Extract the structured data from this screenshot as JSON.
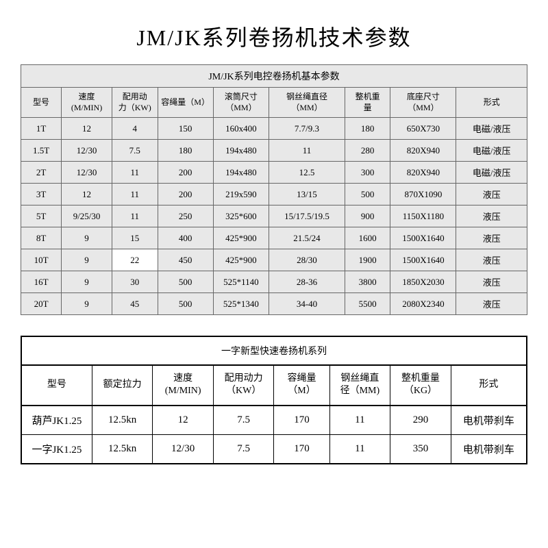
{
  "page_title": "JM/JK系列卷扬机技术参数",
  "table1": {
    "caption": "JM/JK系列电控卷扬机基本参数",
    "columns": [
      "型号",
      "速度\n(M/MIN)",
      "配用动\n力（KW)",
      "容绳量（M）",
      "滚筒尺寸\n（MM）",
      "钢丝绳直径\n（MM）",
      "整机重\n量",
      "底座尺寸\n（MM）",
      "形式"
    ],
    "col_widths": [
      "8%",
      "10%",
      "9%",
      "11%",
      "11%",
      "15%",
      "9%",
      "13%",
      "14%"
    ],
    "highlight_cell": {
      "row": 6,
      "col": 2
    },
    "rows": [
      [
        "1T",
        "12",
        "4",
        "150",
        "160x400",
        "7.7/9.3",
        "180",
        "650X730",
        "电磁/液压"
      ],
      [
        "1.5T",
        "12/30",
        "7.5",
        "180",
        "194x480",
        "11",
        "280",
        "820X940",
        "电磁/液压"
      ],
      [
        "2T",
        "12/30",
        "11",
        "200",
        "194x480",
        "12.5",
        "300",
        "820X940",
        "电磁/液压"
      ],
      [
        "3T",
        "12",
        "11",
        "200",
        "219x590",
        "13/15",
        "500",
        "870X1090",
        "液压"
      ],
      [
        "5T",
        "9/25/30",
        "11",
        "250",
        "325*600",
        "15/17.5/19.5",
        "900",
        "1150X1180",
        "液压"
      ],
      [
        "8T",
        "9",
        "15",
        "400",
        "425*900",
        "21.5/24",
        "1600",
        "1500X1640",
        "液压"
      ],
      [
        "10T",
        "9",
        "22",
        "450",
        "425*900",
        "28/30",
        "1900",
        "1500X1640",
        "液压"
      ],
      [
        "16T",
        "9",
        "30",
        "500",
        "525*1140",
        "28-36",
        "3800",
        "1850X2030",
        "液压"
      ],
      [
        "20T",
        "9",
        "45",
        "500",
        "525*1340",
        "34-40",
        "5500",
        "2080X2340",
        "液压"
      ]
    ]
  },
  "table2": {
    "caption": "一字新型快速卷扬机系列",
    "columns": [
      "型号",
      "额定拉力",
      "速度\n(M/MIN)",
      "配用动力\n（KW）",
      "容绳量\n（M）",
      "钢丝绳直\n径（MM)",
      "整机重量\n（KG）",
      "形式"
    ],
    "col_widths": [
      "14%",
      "12%",
      "12%",
      "12%",
      "11%",
      "12%",
      "12%",
      "15%"
    ],
    "rows": [
      [
        "葫芦JK1.25",
        "12.5kn",
        "12",
        "7.5",
        "170",
        "11",
        "290",
        "电机带刹车"
      ],
      [
        "一字JK1.25",
        "12.5kn",
        "12/30",
        "7.5",
        "170",
        "11",
        "350",
        "电机带刹车"
      ]
    ]
  },
  "style": {
    "bg_table1": "#e8e8e8",
    "border_color": "#666666",
    "highlight_bg": "#ffffff"
  }
}
